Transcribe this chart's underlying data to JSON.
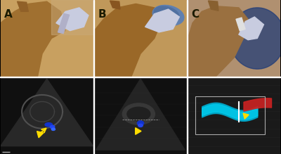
{
  "panel_labels": [
    "A",
    "B",
    "C"
  ],
  "label_color": "#2b2b00",
  "label_fontsize": 11,
  "label_fontweight": "bold",
  "bg_color": "#000000",
  "fig_width": 4.0,
  "fig_height": 2.19,
  "dpi": 100,
  "n_cols": 3,
  "top_row_color_photo": "#c8a060",
  "bottom_row_color_us": "#303030",
  "panel_A_top": {
    "bg": "#c8a060",
    "camel_color": "#b07830",
    "probe_color": "#d0d0d0",
    "glove_color": "#d8d8e8"
  },
  "panel_B_top": {
    "bg": "#c8a060"
  },
  "panel_C_top": {
    "bg": "#b09070"
  },
  "panel_A_bottom": {
    "bg": "#111111",
    "us_color": "#606060",
    "blue_color": "#2244ff",
    "yellow_color": "#ffdd00"
  },
  "panel_B_bottom": {
    "bg": "#111111",
    "us_color": "#505050",
    "blue_color": "#2244ff",
    "yellow_color": "#ffdd00"
  },
  "panel_C_bottom": {
    "bg": "#0a0a0a",
    "cyan_color": "#00ccdd",
    "red_color": "#dd2222",
    "yellow_color": "#ffdd00",
    "box_color": "#aaaaaa"
  },
  "border_color": "#ffffff",
  "border_lw": 0.5,
  "row_split": 0.5
}
